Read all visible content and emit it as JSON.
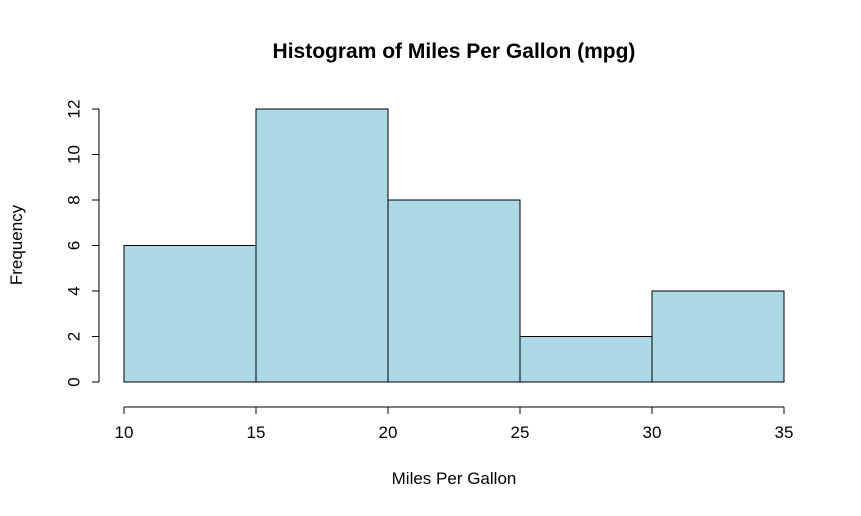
{
  "chart_data": {
    "type": "bar",
    "title": "Histogram of Miles Per Gallon (mpg)",
    "xlabel": "Miles Per Gallon",
    "ylabel": "Frequency",
    "bins": [
      {
        "from": 10,
        "to": 15,
        "count": 6
      },
      {
        "from": 15,
        "to": 20,
        "count": 12
      },
      {
        "from": 20,
        "to": 25,
        "count": 8
      },
      {
        "from": 25,
        "to": 30,
        "count": 2
      },
      {
        "from": 30,
        "to": 35,
        "count": 4
      }
    ],
    "xlim": [
      10,
      35
    ],
    "ylim": [
      0,
      12
    ],
    "x_ticks": [
      "10",
      "15",
      "20",
      "25",
      "30",
      "35"
    ],
    "y_ticks": [
      "0",
      "2",
      "4",
      "6",
      "8",
      "10",
      "12"
    ],
    "bar_color": "#add8e6",
    "grid": false,
    "legend": "none"
  }
}
